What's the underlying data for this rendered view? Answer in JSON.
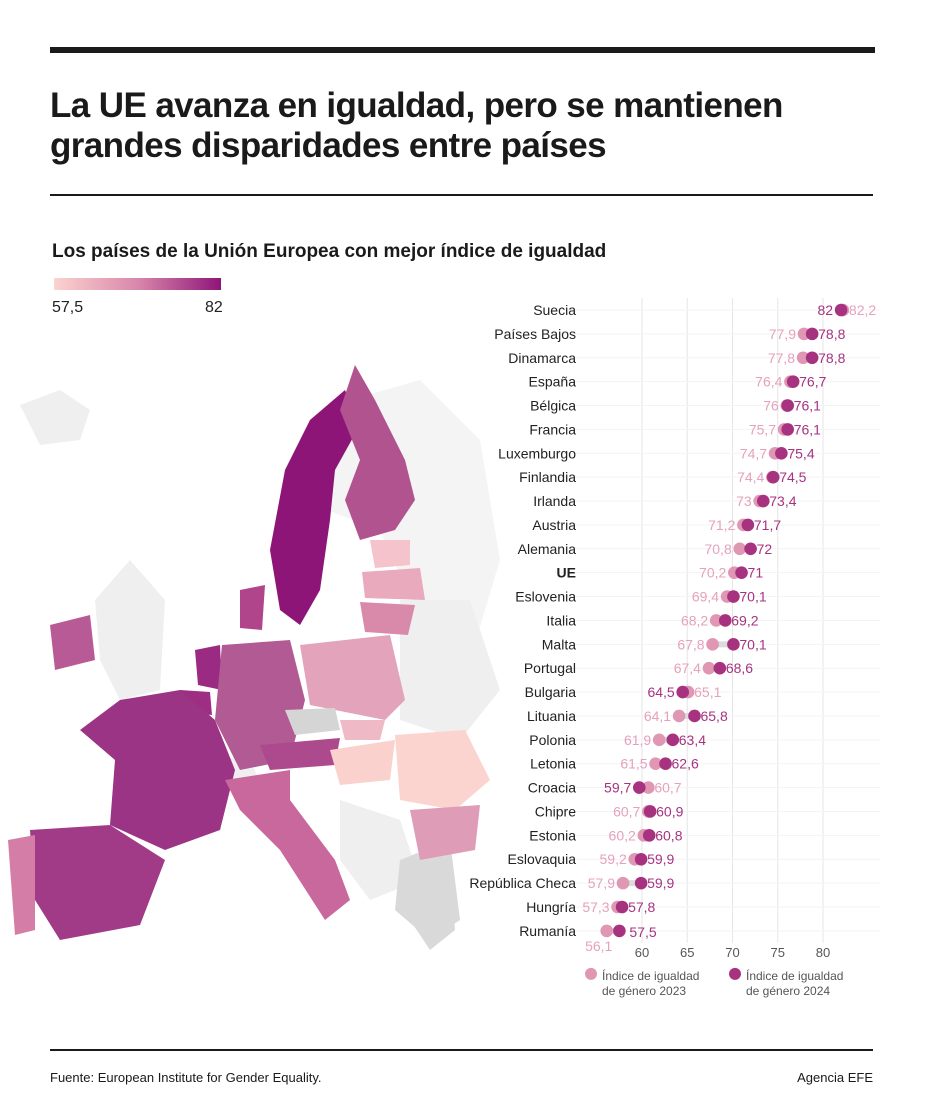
{
  "title": "La UE avanza en igualdad, pero se mantienen grandes disparidades entre países",
  "subtitle": "Los países de la Unión Europea con mejor índice de igualdad",
  "map_legend": {
    "min": "57,5",
    "max": "82"
  },
  "colors": {
    "c2023": "#df97b4",
    "c2024": "#a73380",
    "label2023": "#e6a1bd",
    "label2024": "#a73380",
    "grid": "#e6e6e6"
  },
  "footer": {
    "source": "Fuente: European Institute for Gender Equality.",
    "agency": "Agencia EFE"
  },
  "chart_data": {
    "type": "dumbbell",
    "xlim": [
      56,
      84
    ],
    "xticks": [
      60,
      65,
      70,
      75,
      80
    ],
    "legend": [
      {
        "name": "Índice de igualdad de género 2023",
        "line1": "Índice de igualdad",
        "line2": "de género 2023"
      },
      {
        "name": "Índice de igualdad de género 2024",
        "line1": "Índice de igualdad",
        "line2": "de género 2024"
      }
    ],
    "legend_position": "bottom",
    "rows": [
      {
        "country": "Suecia",
        "v2023": 82.2,
        "v2024": 82,
        "l2023": "82,2",
        "l2024": "82"
      },
      {
        "country": "Países Bajos",
        "v2023": 77.9,
        "v2024": 78.8,
        "l2023": "77,9",
        "l2024": "78,8"
      },
      {
        "country": "Dinamarca",
        "v2023": 77.8,
        "v2024": 78.8,
        "l2023": "77,8",
        "l2024": "78,8"
      },
      {
        "country": "España",
        "v2023": 76.4,
        "v2024": 76.7,
        "l2023": "76,4",
        "l2024": "76,7"
      },
      {
        "country": "Bélgica",
        "v2023": 76,
        "v2024": 76.1,
        "l2023": "76",
        "l2024": "76,1"
      },
      {
        "country": "Francia",
        "v2023": 75.7,
        "v2024": 76.1,
        "l2023": "75,7",
        "l2024": "76,1"
      },
      {
        "country": "Luxemburgo",
        "v2023": 74.7,
        "v2024": 75.4,
        "l2023": "74,7",
        "l2024": "75,4"
      },
      {
        "country": "Finlandia",
        "v2023": 74.4,
        "v2024": 74.5,
        "l2023": "74,4",
        "l2024": "74,5"
      },
      {
        "country": "Irlanda",
        "v2023": 73,
        "v2024": 73.4,
        "l2023": "73",
        "l2024": "73,4"
      },
      {
        "country": "Austria",
        "v2023": 71.2,
        "v2024": 71.7,
        "l2023": "71,2",
        "l2024": "71,7"
      },
      {
        "country": "Alemania",
        "v2023": 70.8,
        "v2024": 72,
        "l2023": "70,8",
        "l2024": "72"
      },
      {
        "country": "UE",
        "v2023": 70.2,
        "v2024": 71,
        "l2023": "70,2",
        "l2024": "71",
        "bold": true
      },
      {
        "country": "Eslovenia",
        "v2023": 69.4,
        "v2024": 70.1,
        "l2023": "69,4",
        "l2024": "70,1"
      },
      {
        "country": "Italia",
        "v2023": 68.2,
        "v2024": 69.2,
        "l2023": "68,2",
        "l2024": "69,2"
      },
      {
        "country": "Malta",
        "v2023": 67.8,
        "v2024": 70.1,
        "l2023": "67,8",
        "l2024": "70,1"
      },
      {
        "country": "Portugal",
        "v2023": 67.4,
        "v2024": 68.6,
        "l2023": "67,4",
        "l2024": "68,6"
      },
      {
        "country": "Bulgaria",
        "v2023": 65.1,
        "v2024": 64.5,
        "l2023": "65,1",
        "l2024": "64,5"
      },
      {
        "country": "Lituania",
        "v2023": 64.1,
        "v2024": 65.8,
        "l2023": "64,1",
        "l2024": "65,8"
      },
      {
        "country": "Polonia",
        "v2023": 61.9,
        "v2024": 63.4,
        "l2023": "61,9",
        "l2024": "63,4"
      },
      {
        "country": "Letonia",
        "v2023": 61.5,
        "v2024": 62.6,
        "l2023": "61,5",
        "l2024": "62,6"
      },
      {
        "country": "Croacia",
        "v2023": 60.7,
        "v2024": 59.7,
        "l2023": "60,7",
        "l2024": "59,7"
      },
      {
        "country": "Chipre",
        "v2023": 60.7,
        "v2024": 60.9,
        "l2023": "60,7",
        "l2024": "60,9"
      },
      {
        "country": "Estonia",
        "v2023": 60.2,
        "v2024": 60.8,
        "l2023": "60,2",
        "l2024": "60,8"
      },
      {
        "country": "Eslovaquia",
        "v2023": 59.2,
        "v2024": 59.9,
        "l2023": "59,2",
        "l2024": "59,9"
      },
      {
        "country": "República Checa",
        "v2023": 57.9,
        "v2024": 59.9,
        "l2023": "57,9",
        "l2024": "59,9"
      },
      {
        "country": "Hungría",
        "v2023": 57.3,
        "v2024": 57.8,
        "l2023": "57,3",
        "l2024": "57,8"
      },
      {
        "country": "Rumanía",
        "v2023": 56.1,
        "v2024": 57.5,
        "l2023": "56,1",
        "l2024": "57,5"
      }
    ]
  }
}
